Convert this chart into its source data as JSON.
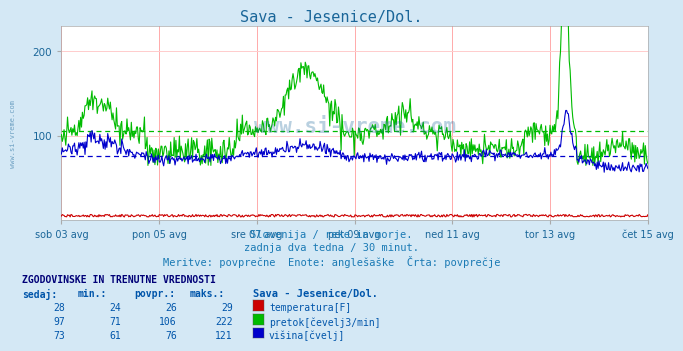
{
  "title": "Sava - Jesenice/Dol.",
  "title_color": "#1a6699",
  "bg_color": "#d4e8f5",
  "plot_bg_color": "#ffffff",
  "avg_line_green": 106,
  "avg_line_blue": 76,
  "ylim": [
    0,
    230
  ],
  "yticks": [
    100,
    200
  ],
  "xtick_labels": [
    "sob 03 avg",
    "pon 05 avg",
    "sre 07 avg",
    "pet 09 avg",
    "ned 11 avg",
    "tor 13 avg",
    "čet 15 avg"
  ],
  "subtitle1": "Slovenija / reke in morje.",
  "subtitle2": "zadnja dva tedna / 30 minut.",
  "subtitle3": "Meritve: povprečne  Enote: anglešaške  Črta: povprečje",
  "subtitle_color": "#1a7ab5",
  "table_header": "ZGODOVINSKE IN TRENUTNE VREDNOSTI",
  "table_col0": "sedaj:",
  "table_col1": "min.:",
  "table_col2": "povpr.:",
  "table_col3": "maks.:",
  "table_col4": "Sava - Jesenice/Dol.",
  "row1_vals": [
    28,
    24,
    26,
    29
  ],
  "row1_label": "temperatura[F]",
  "row1_color": "#cc0000",
  "row2_vals": [
    97,
    71,
    106,
    222
  ],
  "row2_label": "pretok[čevelj3/min]",
  "row2_color": "#00bb00",
  "row3_vals": [
    73,
    61,
    76,
    121
  ],
  "row3_label": "višina[čvelj]",
  "row3_color": "#0000cc",
  "watermark_color": "#1a6699",
  "n_points": 672
}
